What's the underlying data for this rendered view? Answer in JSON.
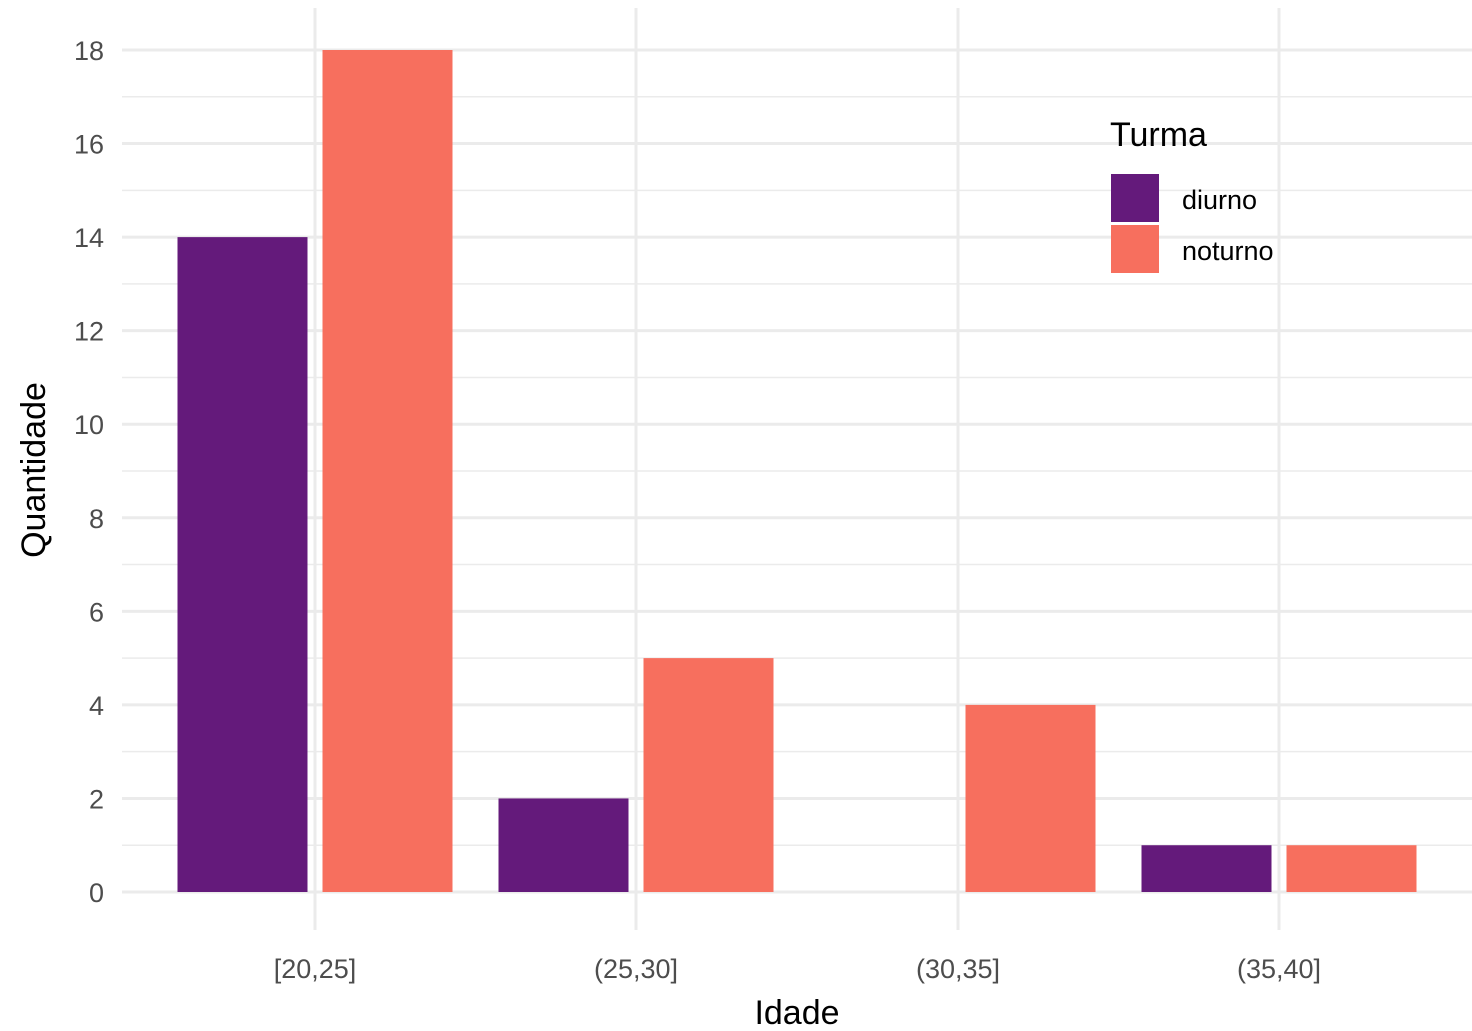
{
  "chart_data": {
    "type": "bar",
    "title": "",
    "xlabel": "Idade",
    "ylabel": "Quantidade",
    "categories": [
      "[20,25]",
      "(25,30]",
      "(30,35]",
      "(35,40]"
    ],
    "series": [
      {
        "name": "diurno",
        "values": [
          14,
          2,
          0,
          1
        ],
        "color": "#641A7B"
      },
      {
        "name": "noturno",
        "values": [
          18,
          5,
          4,
          1
        ],
        "color": "#F76F5E"
      }
    ],
    "ylim": [
      0,
      18
    ],
    "yticks": [
      0,
      2,
      4,
      6,
      8,
      10,
      12,
      14,
      16,
      18
    ],
    "grid": true,
    "legend": {
      "title": "Turma",
      "position": "top-right"
    }
  },
  "colors": {
    "grid": "#EBEBEB",
    "tick_text": "#4D4D4D"
  }
}
